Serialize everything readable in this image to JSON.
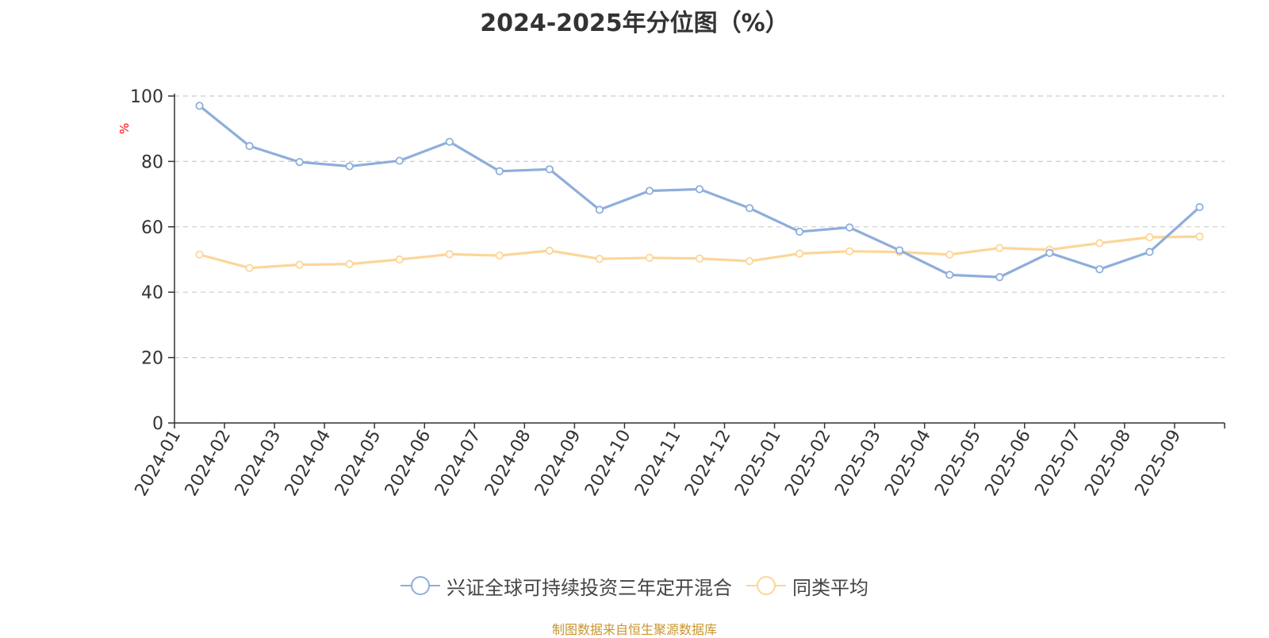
{
  "colors": {
    "series1": "#8eaedb",
    "series2": "#fcd697",
    "axis": "#333333",
    "grid": "#cccccc",
    "ylabel": "#ff0000",
    "source": "#c8962e"
  },
  "source_note": "制图数据来自恒生聚源数据库",
  "chart_data": {
    "type": "line",
    "title": "2024-2025年分位图（%）",
    "xlabel": "",
    "ylabel": "%",
    "ylim": [
      0,
      100
    ],
    "yticks": [
      0,
      20,
      40,
      60,
      80,
      100
    ],
    "grid": true,
    "legend_position": "bottom",
    "categories": [
      "2024-01",
      "2024-02",
      "2024-03",
      "2024-04",
      "2024-05",
      "2024-06",
      "2024-07",
      "2024-08",
      "2024-09",
      "2024-10",
      "2024-11",
      "2024-12",
      "2025-01",
      "2025-02",
      "2025-03",
      "2025-04",
      "2025-05",
      "2025-06",
      "2025-07",
      "2025-08",
      "2025-09"
    ],
    "series": [
      {
        "name": "兴证全球可持续投资三年定开混合",
        "values": [
          97,
          84.7,
          79.8,
          78.5,
          80.2,
          86,
          77,
          77.6,
          65.2,
          71,
          71.5,
          65.7,
          58.5,
          59.8,
          52.8,
          45.3,
          44.6,
          52,
          47,
          52.3,
          66
        ]
      },
      {
        "name": "同类平均",
        "values": [
          51.5,
          47.4,
          48.4,
          48.6,
          50,
          51.6,
          51.2,
          52.7,
          50.2,
          50.5,
          50.3,
          49.5,
          51.8,
          52.5,
          52.3,
          51.5,
          53.5,
          53,
          55,
          56.8,
          57
        ]
      }
    ]
  }
}
